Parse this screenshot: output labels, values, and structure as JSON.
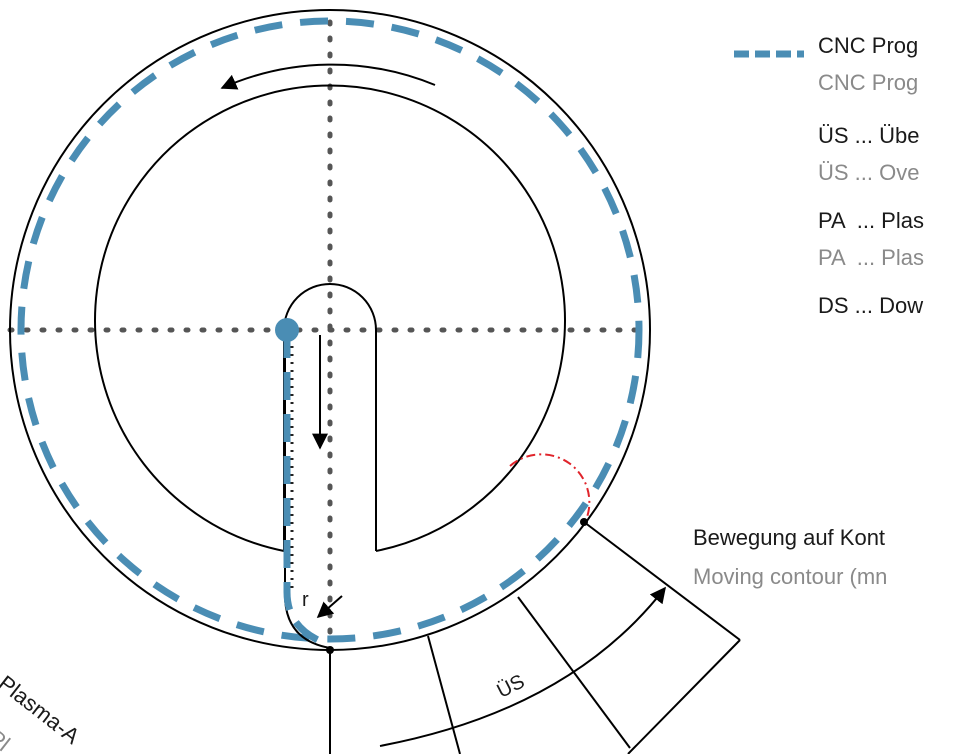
{
  "legend": {
    "items": [
      {
        "primary": "CNC Prog",
        "secondary": "CNC Prog",
        "swatch": "dashed-blue-line"
      },
      {
        "primary": "ÜS ... Übe",
        "secondary": "ÜS ... Ove"
      },
      {
        "primary": "PA  ... Plas",
        "secondary": "PA  ... Plas"
      },
      {
        "primary": "DS ... Dow"
      }
    ]
  },
  "labels": {
    "r": "r",
    "us": "ÜS",
    "moving_de": "Bewegung auf Kont",
    "moving_en": "Moving contour (mn",
    "plasma_de": "Plasma-A",
    "plasma_en": "Pl"
  },
  "colors": {
    "program_path": "#4a8db4",
    "contour": "#000000",
    "arc_detail": "#e0242b",
    "primary_text": "#1a1a1a",
    "secondary_text": "#8a8a8a"
  }
}
